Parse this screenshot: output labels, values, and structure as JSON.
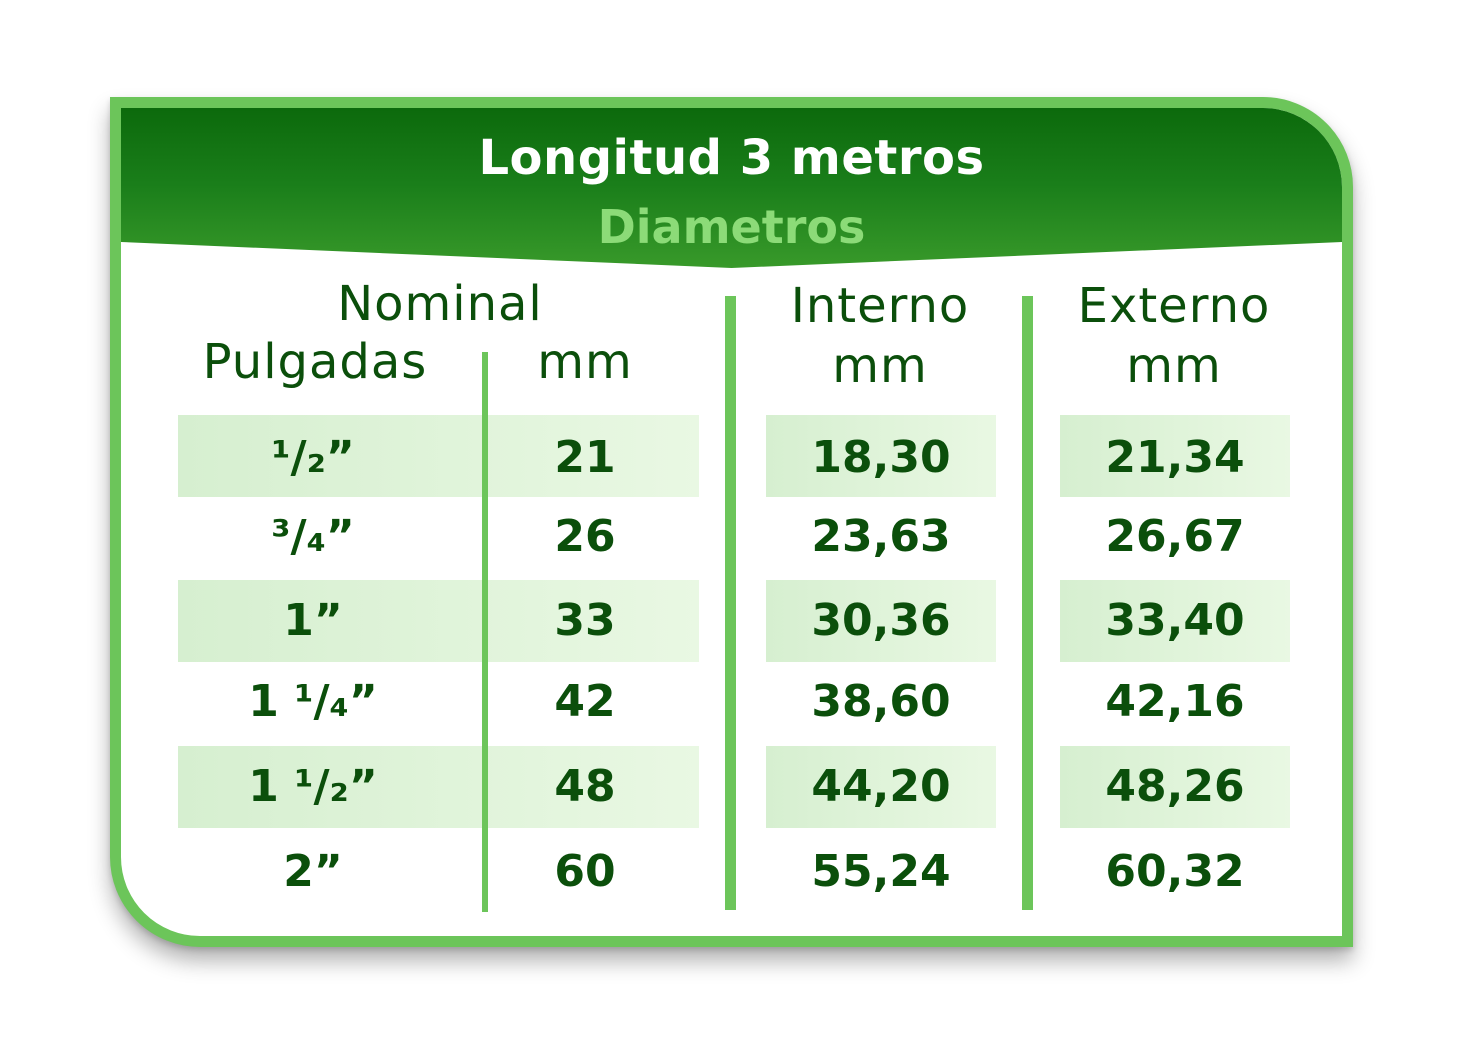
{
  "header": {
    "title": "Longitud 3 metros",
    "subtitle": "Diametros"
  },
  "columns": {
    "nominal": "Nominal",
    "pulgadas": "Pulgadas",
    "mm": "mm",
    "interno": "Interno",
    "interno_unit": "mm",
    "externo": "Externo",
    "externo_unit": "mm"
  },
  "rows": [
    {
      "pulgadas": "¹/₂”",
      "mm": "21",
      "interno": "18,30",
      "externo": "21,34"
    },
    {
      "pulgadas": "³/₄”",
      "mm": "26",
      "interno": "23,63",
      "externo": "26,67"
    },
    {
      "pulgadas": "1”",
      "mm": "33",
      "interno": "30,36",
      "externo": "33,40"
    },
    {
      "pulgadas": "1 ¹/₄”",
      "mm": "42",
      "interno": "38,60",
      "externo": "42,16"
    },
    {
      "pulgadas": "1 ¹/₂”",
      "mm": "48",
      "interno": "44,20",
      "externo": "48,26"
    },
    {
      "pulgadas": "2”",
      "mm": "60",
      "interno": "55,24",
      "externo": "60,32"
    }
  ],
  "colors": {
    "header_dark": "#0c6a0c",
    "header_light": "#3c9d2c",
    "border": "#6cc55a",
    "text": "#0b4f0b",
    "subtitle": "#8cdb78",
    "band": "#e1f4da"
  }
}
